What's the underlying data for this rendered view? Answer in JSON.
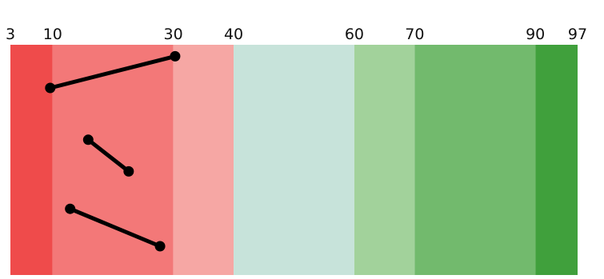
{
  "chart_data": {
    "type": "scatter",
    "x_ticks": [
      3,
      10,
      30,
      40,
      60,
      70,
      90,
      97
    ],
    "xlim": [
      3,
      97
    ],
    "bands": [
      {
        "from": 3,
        "to": 10,
        "color": "#ef4b4b"
      },
      {
        "from": 10,
        "to": 30,
        "color": "#f37878"
      },
      {
        "from": 30,
        "to": 40,
        "color": "#f6a7a4"
      },
      {
        "from": 40,
        "to": 60,
        "color": "#c7e3da"
      },
      {
        "from": 60,
        "to": 70,
        "color": "#a2d29b"
      },
      {
        "from": 70,
        "to": 90,
        "color": "#72ba6d"
      },
      {
        "from": 90,
        "to": 97,
        "color": "#40a03c"
      }
    ],
    "rows": 4,
    "segments": [
      {
        "from": 9.6,
        "to": 30.3,
        "row_from": 0.75,
        "row_to": 0.2
      },
      {
        "from": 15.9,
        "to": 22.6,
        "row_from": 1.65,
        "row_to": 2.2
      },
      {
        "from": 12.9,
        "to": 27.8,
        "row_from": 2.85,
        "row_to": 3.5
      }
    ],
    "segment_color": "#000000"
  }
}
